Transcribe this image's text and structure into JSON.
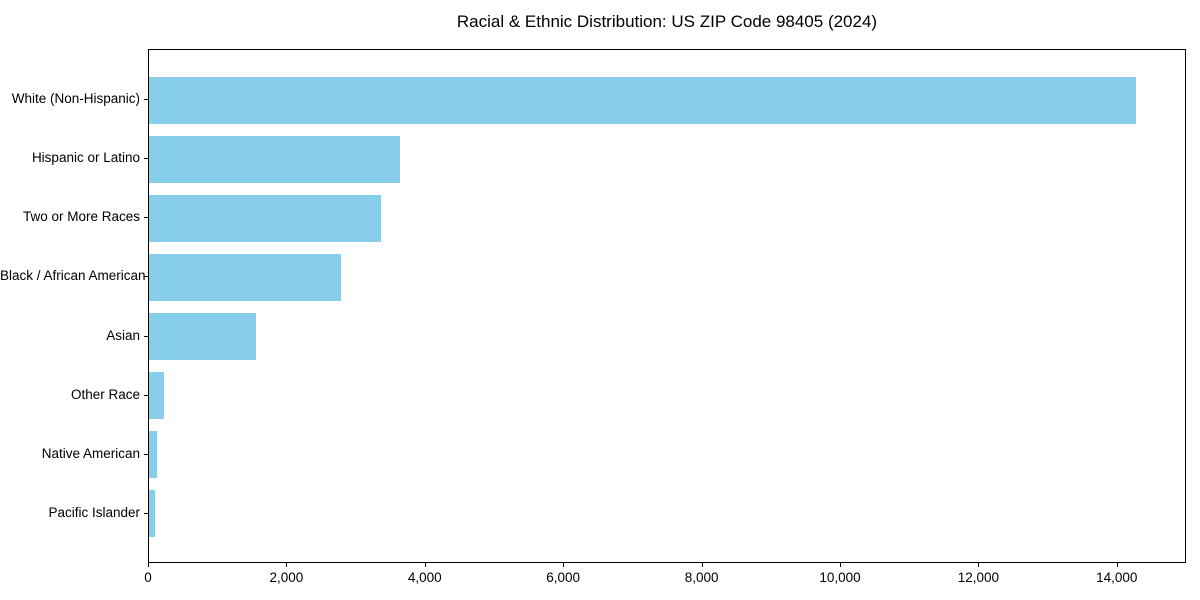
{
  "chart_data": {
    "type": "bar",
    "orientation": "horizontal",
    "title": "Racial & Ethnic Distribution: US ZIP Code 98405 (2024)",
    "categories": [
      "White (Non-Hispanic)",
      "Hispanic or Latino",
      "Two or More Races",
      "Black / African American",
      "Asian",
      "Other Race",
      "Native American",
      "Pacific Islander"
    ],
    "values": [
      14290,
      3640,
      3355,
      2780,
      1550,
      210,
      110,
      90
    ],
    "bar_color": "#87CEEB",
    "xlabel": "",
    "ylabel": "",
    "xlim": [
      0,
      15000
    ],
    "x_ticks": [
      0,
      2000,
      4000,
      6000,
      8000,
      10000,
      12000,
      14000
    ],
    "x_tick_labels": [
      "0",
      "2,000",
      "4,000",
      "6,000",
      "8,000",
      "10,000",
      "12,000",
      "14,000"
    ],
    "grid": false,
    "legend": "none",
    "background_color": "#ffffff",
    "axis_color": "#000000"
  }
}
